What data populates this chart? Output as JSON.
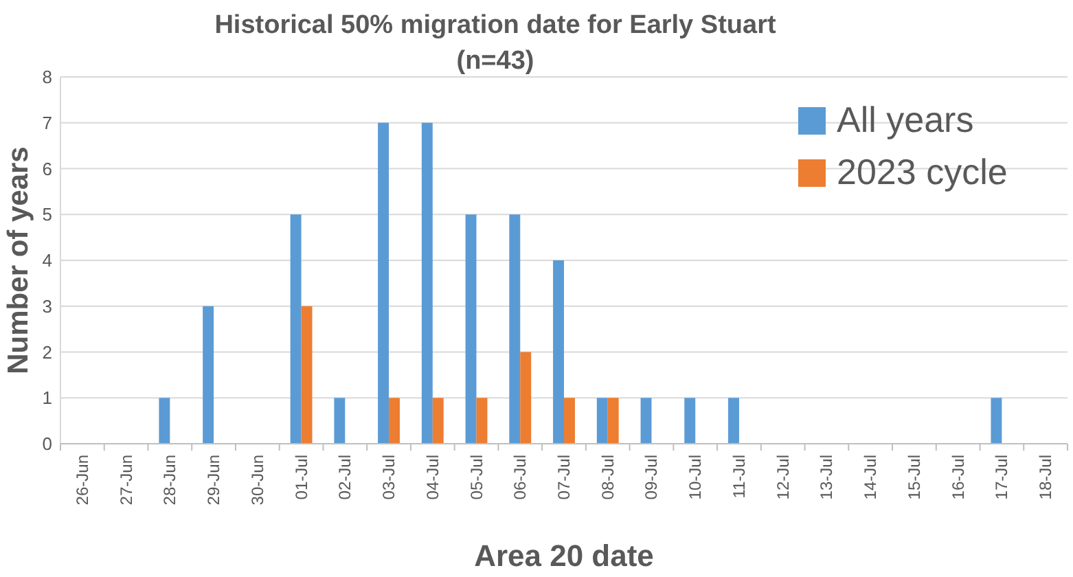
{
  "chart_data": {
    "type": "bar",
    "title": "Historical 50% migration date for Early Stuart",
    "subtitle": "(n=43)",
    "xlabel": "Area 20 date",
    "ylabel": "Number of years",
    "categories": [
      "26-Jun",
      "27-Jun",
      "28-Jun",
      "29-Jun",
      "30-Jun",
      "01-Jul",
      "02-Jul",
      "03-Jul",
      "04-Jul",
      "05-Jul",
      "06-Jul",
      "07-Jul",
      "08-Jul",
      "09-Jul",
      "10-Jul",
      "11-Jul",
      "12-Jul",
      "13-Jul",
      "14-Jul",
      "15-Jul",
      "16-Jul",
      "17-Jul",
      "18-Jul"
    ],
    "series": [
      {
        "name": "All years",
        "color": "#5b9bd5",
        "values": [
          0,
          0,
          1,
          3,
          0,
          5,
          1,
          7,
          7,
          5,
          5,
          4,
          1,
          1,
          1,
          1,
          0,
          0,
          0,
          0,
          0,
          1,
          0
        ]
      },
      {
        "name": "2023 cycle",
        "color": "#ed7d31",
        "values": [
          0,
          0,
          0,
          0,
          0,
          3,
          0,
          1,
          1,
          1,
          2,
          1,
          1,
          0,
          0,
          0,
          0,
          0,
          0,
          0,
          0,
          0,
          0
        ]
      }
    ],
    "ylim": [
      0,
      8
    ],
    "yticks": [
      0,
      1,
      2,
      3,
      4,
      5,
      6,
      7,
      8
    ],
    "grid": "y",
    "legend": "top right"
  }
}
